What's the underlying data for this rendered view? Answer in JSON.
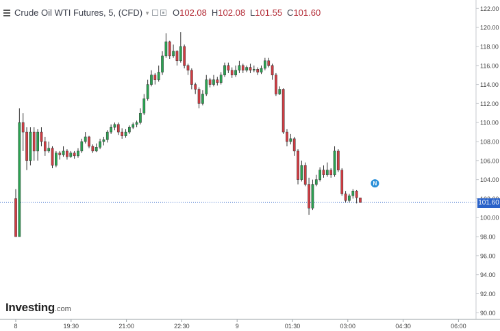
{
  "legend": {
    "title": "Crude Oil WTI Futures, 5, (CFD)",
    "o_key": "O",
    "o_val": "102.08",
    "h_key": "H",
    "h_val": "102.08",
    "l_key": "L",
    "l_val": "101.55",
    "c_key": "C",
    "c_val": "101.60"
  },
  "logo": {
    "brand": "Investing",
    "domain": ".com"
  },
  "last_price_label": "101.60",
  "news_marker_label": "N",
  "colors": {
    "up": "#2aa352",
    "down": "#d23c43",
    "price_line": "#2a62c9",
    "axis_text": "#444444",
    "grid": "#ffffff"
  },
  "chart_data": {
    "type": "candlestick",
    "y_ticks": [
      "122.00",
      "120.00",
      "118.00",
      "116.00",
      "114.00",
      "112.00",
      "110.00",
      "108.00",
      "106.00",
      "104.00",
      "102.00",
      "100.00",
      "98.00",
      "96.00",
      "94.00",
      "92.00",
      "90.00"
    ],
    "x_ticks": [
      "8",
      "19:30",
      "21:00",
      "22:30",
      "9",
      "01:30",
      "03:00",
      "04:30",
      "06:00"
    ],
    "ylim": [
      89.3,
      122.6
    ],
    "last_price": 101.6,
    "news_marker_price": 103.6,
    "candles": [
      [
        102,
        98,
        103,
        98
      ],
      [
        98,
        110,
        111.5,
        98
      ],
      [
        110,
        109,
        111,
        107
      ],
      [
        109,
        106,
        109.5,
        105
      ],
      [
        106,
        109,
        109.5,
        105.5
      ],
      [
        109,
        107,
        109.5,
        106
      ],
      [
        107,
        109,
        109.3,
        106
      ],
      [
        109,
        108,
        109.5,
        107.5
      ],
      [
        108,
        107,
        108.5,
        106.5
      ],
      [
        107,
        107.3,
        108,
        106.8
      ],
      [
        107.3,
        105.5,
        107.5,
        105.2
      ],
      [
        105.5,
        106.8,
        107,
        105.3
      ],
      [
        106.8,
        106.6,
        107,
        106.1
      ],
      [
        106.6,
        107,
        107.5,
        106.4
      ],
      [
        107,
        106.4,
        107.2,
        106.1
      ],
      [
        106.4,
        106.8,
        107,
        106.3
      ],
      [
        106.8,
        106.5,
        107,
        106.2
      ],
      [
        106.5,
        107,
        107.3,
        106.3
      ],
      [
        107,
        108,
        108.3,
        106.8
      ],
      [
        108,
        108.5,
        109,
        107.8
      ],
      [
        108.5,
        107.5,
        108.6,
        107.3
      ],
      [
        107.5,
        107,
        107.7,
        106.8
      ],
      [
        107,
        107.4,
        107.8,
        106.9
      ],
      [
        107.4,
        108,
        108.3,
        107.2
      ],
      [
        108,
        108.2,
        108.5,
        107.6
      ],
      [
        108.2,
        109,
        109.2,
        107.9
      ],
      [
        109,
        109.5,
        109.8,
        108.8
      ],
      [
        109.5,
        109.8,
        110,
        109.2
      ],
      [
        109.8,
        109,
        110,
        108.7
      ],
      [
        109,
        108.6,
        109.4,
        108.3
      ],
      [
        108.6,
        109,
        109.3,
        108.4
      ],
      [
        109,
        109.5,
        109.7,
        108.8
      ],
      [
        109.5,
        109.8,
        110,
        109.3
      ],
      [
        109.8,
        110,
        110.2,
        109.5
      ],
      [
        110,
        111,
        111.5,
        109.8
      ],
      [
        111,
        112.5,
        113,
        110.8
      ],
      [
        112.5,
        114,
        114.5,
        112.3
      ],
      [
        114,
        115,
        115.5,
        113.8
      ],
      [
        115,
        114.5,
        115.2,
        114
      ],
      [
        114.5,
        115.3,
        116,
        114.3
      ],
      [
        115.3,
        117,
        117.5,
        115
      ],
      [
        117,
        118.5,
        119.4,
        116.8
      ],
      [
        118.5,
        117,
        118.6,
        116.7
      ],
      [
        117,
        117.5,
        118.2,
        116.8
      ],
      [
        117.5,
        116.5,
        117.6,
        116
      ],
      [
        116.5,
        118,
        119.5,
        116.3
      ],
      [
        118,
        116,
        118.2,
        115.7
      ],
      [
        116,
        115.5,
        116.2,
        115
      ],
      [
        115.5,
        114,
        115.7,
        113.5
      ],
      [
        114,
        113.5,
        114.2,
        113
      ],
      [
        113.5,
        112,
        113.7,
        111.5
      ],
      [
        112,
        113,
        113.4,
        111.8
      ],
      [
        113,
        114.5,
        115,
        112.8
      ],
      [
        114.5,
        114,
        114.7,
        113.7
      ],
      [
        114,
        114.5,
        115,
        113.8
      ],
      [
        114.5,
        114.2,
        114.8,
        113.9
      ],
      [
        114.2,
        115,
        115.3,
        114
      ],
      [
        115,
        116,
        116.3,
        114.8
      ],
      [
        116,
        115.5,
        116.3,
        115.2
      ],
      [
        115.5,
        115,
        115.8,
        114.7
      ],
      [
        115,
        115.5,
        116,
        114.8
      ],
      [
        115.5,
        116,
        116.5,
        115.2
      ],
      [
        116,
        115.5,
        116.2,
        115.2
      ],
      [
        115.5,
        115.8,
        116,
        115.3
      ],
      [
        115.8,
        115.5,
        116.2,
        115.2
      ],
      [
        115.5,
        115.6,
        116,
        115.3
      ],
      [
        115.6,
        115.3,
        115.8,
        115
      ],
      [
        115.3,
        115.7,
        116,
        115.1
      ],
      [
        115.7,
        116.5,
        116.8,
        115.5
      ],
      [
        116.5,
        116,
        116.8,
        115.8
      ],
      [
        116,
        115,
        116.2,
        114.5
      ],
      [
        115,
        113,
        115.2,
        112.8
      ],
      [
        113,
        113.5,
        113.8,
        112.9
      ],
      [
        113.5,
        109,
        113.6,
        108.8
      ],
      [
        109,
        108,
        109.3,
        107.5
      ],
      [
        108,
        108.3,
        108.8,
        107.7
      ],
      [
        108.3,
        107,
        108.5,
        106.5
      ],
      [
        107,
        104,
        107.2,
        103.5
      ],
      [
        104,
        105.5,
        106,
        103.8
      ],
      [
        105.5,
        103.5,
        105.8,
        103.3
      ],
      [
        103.5,
        101,
        104.2,
        100.3
      ],
      [
        101,
        103.5,
        104,
        100.8
      ],
      [
        103.5,
        104,
        104.5,
        103.3
      ],
      [
        104,
        105,
        105.3,
        103.8
      ],
      [
        105,
        104.5,
        105.5,
        104.2
      ],
      [
        104.5,
        105,
        105.8,
        104.3
      ],
      [
        105,
        104.5,
        105.2,
        104.2
      ],
      [
        104.5,
        107,
        107.5,
        104.3
      ],
      [
        107,
        105,
        107.2,
        104.8
      ],
      [
        105,
        102.5,
        105.2,
        102.3
      ],
      [
        102.5,
        101.8,
        102.8,
        101.6
      ],
      [
        101.8,
        102.3,
        102.5,
        101.6
      ],
      [
        102.3,
        102.8,
        103,
        102
      ],
      [
        102.8,
        102.1,
        102.9,
        101.5
      ],
      [
        102.08,
        101.6,
        102.08,
        101.55
      ]
    ]
  }
}
